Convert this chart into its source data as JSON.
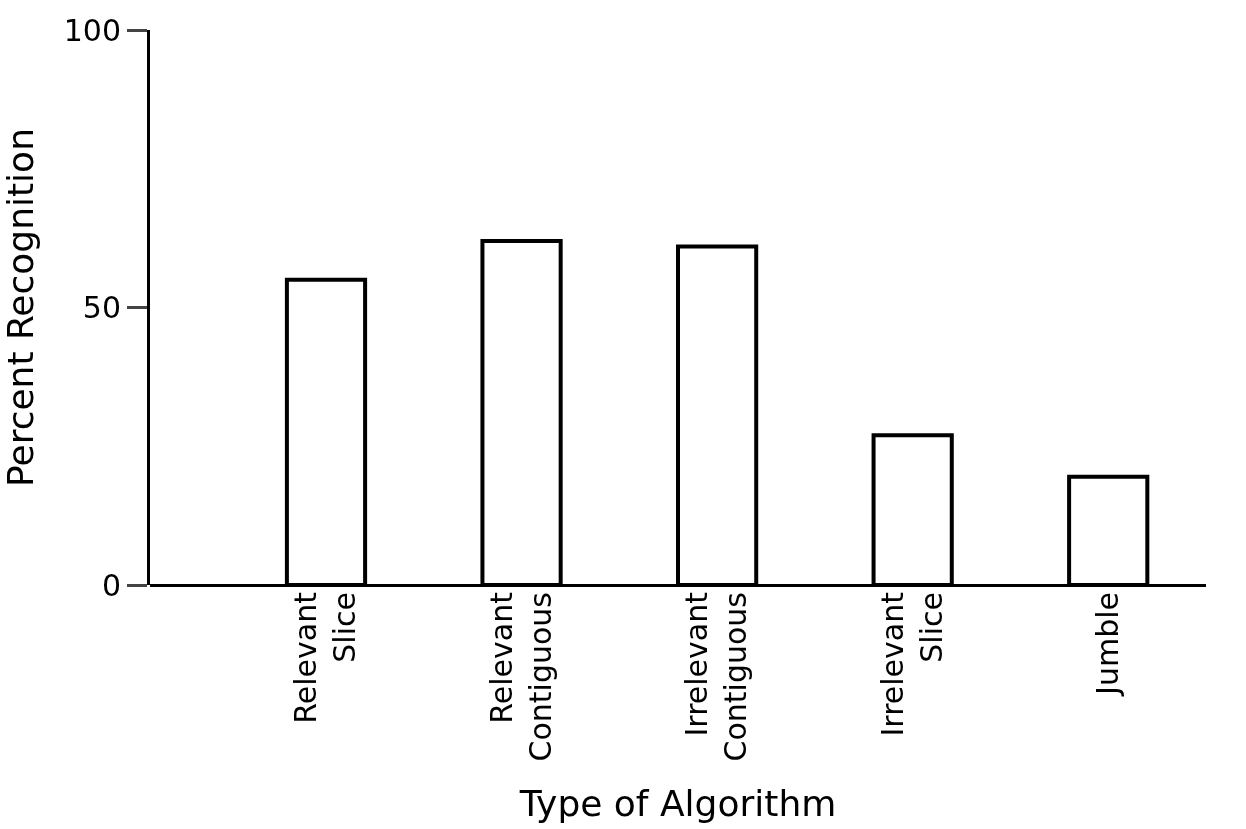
{
  "chart_data": {
    "type": "bar",
    "xlabel": "Type of Algorithm",
    "ylabel": "Percent Recognition",
    "categories": [
      "Relevant Slice",
      "Relevant Contiguous",
      "Irrelevant Contiguous",
      "Irrelevant Slice",
      "Jumble"
    ],
    "values": [
      55,
      62,
      61,
      27,
      19.5
    ],
    "color": "#ffffff",
    "ylim": [
      0,
      100
    ],
    "yticks": [
      0,
      50,
      100
    ]
  }
}
